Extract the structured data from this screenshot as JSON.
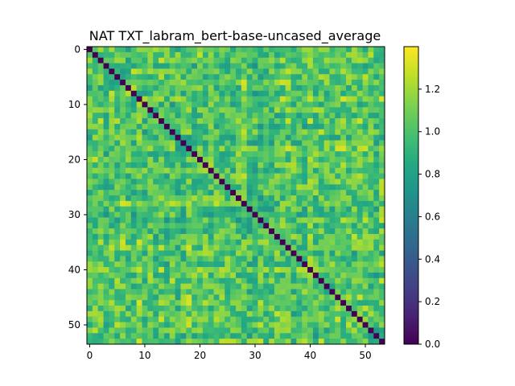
{
  "chart_data": {
    "type": "heatmap",
    "title": "NAT TXT_labram_bert-base-uncased_average",
    "n": 54,
    "x_ticks": [
      0,
      10,
      20,
      30,
      40,
      50
    ],
    "y_ticks": [
      0,
      10,
      20,
      30,
      40,
      50
    ],
    "vmin": 0.0,
    "vmax": 1.4,
    "colorbar_ticks": [
      0.0,
      0.2,
      0.4,
      0.6,
      0.8,
      1.0,
      1.2
    ],
    "colorbar_tick_labels": [
      "0.0",
      "0.2",
      "0.4",
      "0.6",
      "0.8",
      "1.0",
      "1.2"
    ],
    "colormap": "viridis",
    "diagonal_value": 0.0,
    "typical_offdiag_range": [
      0.7,
      1.4
    ],
    "typical_offdiag_mean": 1.0,
    "grid": false,
    "legend": "colorbar-right"
  }
}
